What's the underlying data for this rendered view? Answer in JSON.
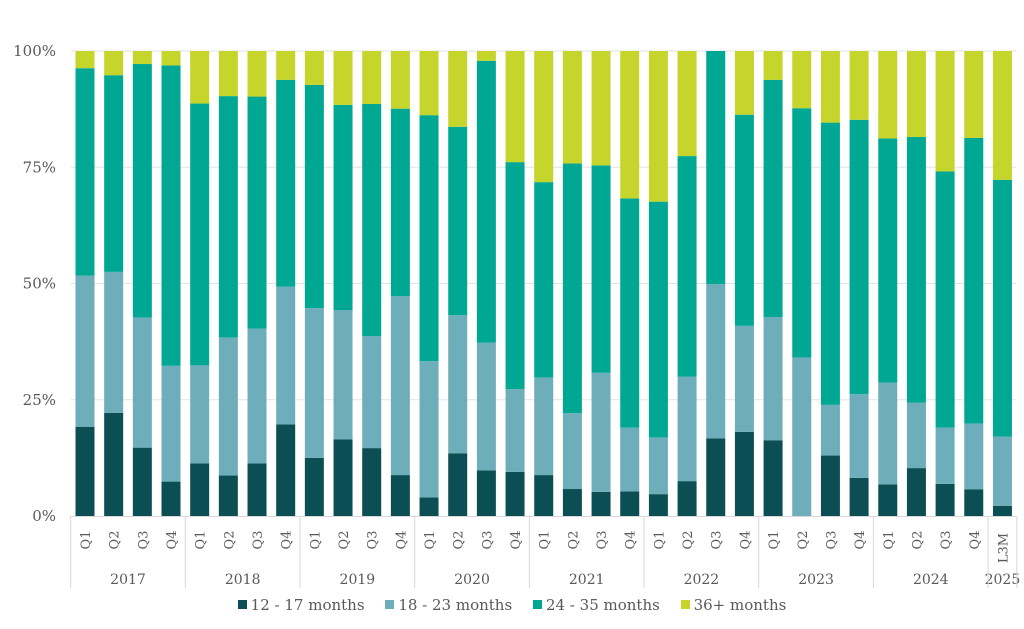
{
  "chart_data": {
    "type": "bar",
    "stacked": true,
    "percent": true,
    "title": "",
    "xlabel": "",
    "ylabel": "",
    "ylim": [
      0,
      100
    ],
    "yticks": [
      "0%",
      "25%",
      "50%",
      "75%",
      "100%"
    ],
    "ytick_values": [
      0,
      25,
      50,
      75,
      100
    ],
    "grid": true,
    "legend_position": "bottom",
    "groups": [
      {
        "label": "2017",
        "categories": [
          "Q1",
          "Q2",
          "Q3",
          "Q4"
        ]
      },
      {
        "label": "2018",
        "categories": [
          "Q1",
          "Q2",
          "Q3",
          "Q4"
        ]
      },
      {
        "label": "2019",
        "categories": [
          "Q1",
          "Q2",
          "Q3",
          "Q4"
        ]
      },
      {
        "label": "2020",
        "categories": [
          "Q1",
          "Q2",
          "Q3",
          "Q4"
        ]
      },
      {
        "label": "2021",
        "categories": [
          "Q1",
          "Q2",
          "Q3",
          "Q4"
        ]
      },
      {
        "label": "2022",
        "categories": [
          "Q1",
          "Q2",
          "Q3",
          "Q4"
        ]
      },
      {
        "label": "2023",
        "categories": [
          "Q1",
          "Q2",
          "Q3",
          "Q4"
        ]
      },
      {
        "label": "2024",
        "categories": [
          "Q1",
          "Q2",
          "Q3",
          "Q4"
        ]
      },
      {
        "label": "2025",
        "categories": [
          "L3M"
        ]
      }
    ],
    "series": [
      {
        "name": "12 - 17 months",
        "color": "#0b4f55",
        "values": [
          19.2,
          22.2,
          14.7,
          7.4,
          11.3,
          8.7,
          11.3,
          19.7,
          12.5,
          16.5,
          14.6,
          8.8,
          4.0,
          13.5,
          9.8,
          9.5,
          8.8,
          5.8,
          5.2,
          5.3,
          4.7,
          7.5,
          16.7,
          18.1,
          16.3,
          0.0,
          13.0,
          8.2,
          6.8,
          10.3,
          6.9,
          5.7,
          2.2
        ]
      },
      {
        "name": "18 - 23 months",
        "color": "#6eaebb",
        "values": [
          32.5,
          30.3,
          28.0,
          24.9,
          21.1,
          29.7,
          29.0,
          29.6,
          32.2,
          27.8,
          24.1,
          38.5,
          29.3,
          29.7,
          27.5,
          17.8,
          21.0,
          16.3,
          25.6,
          13.7,
          12.2,
          22.5,
          33.2,
          22.8,
          26.5,
          34.1,
          10.9,
          18.0,
          21.9,
          14.1,
          12.1,
          14.2,
          14.9
        ]
      },
      {
        "name": "24 - 35 months",
        "color": "#00a893",
        "values": [
          44.6,
          42.3,
          54.5,
          64.6,
          56.3,
          51.9,
          49.9,
          44.5,
          48.0,
          44.1,
          49.9,
          40.3,
          52.9,
          40.5,
          60.6,
          48.8,
          42.0,
          53.7,
          44.6,
          49.3,
          50.7,
          47.4,
          50.1,
          45.4,
          51.0,
          53.6,
          60.7,
          59.0,
          52.5,
          57.1,
          55.1,
          61.4,
          55.2
        ]
      },
      {
        "name": "36+ months",
        "color": "#c5d52b",
        "values": [
          3.7,
          5.2,
          2.8,
          3.1,
          11.3,
          9.7,
          9.8,
          6.2,
          7.3,
          11.6,
          11.4,
          12.4,
          13.8,
          16.3,
          2.1,
          23.9,
          28.2,
          24.2,
          24.6,
          31.7,
          32.4,
          22.6,
          0.0,
          13.7,
          6.2,
          12.3,
          15.4,
          14.8,
          18.8,
          18.5,
          25.9,
          18.7,
          27.7
        ]
      }
    ]
  },
  "legend": [
    {
      "label": "12 - 17 months",
      "color": "#0b4f55"
    },
    {
      "label": "18 - 23 months",
      "color": "#6eaebb"
    },
    {
      "label": "24 - 35 months",
      "color": "#00a893"
    },
    {
      "label": "36+ months",
      "color": "#c5d52b"
    }
  ]
}
